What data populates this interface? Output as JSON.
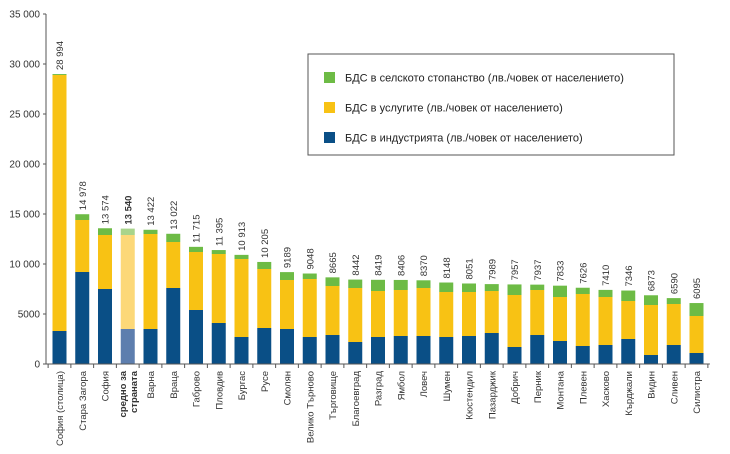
{
  "chart_data": {
    "type": "bar",
    "stacked": true,
    "ylim": [
      0,
      35000
    ],
    "yticks": [
      0,
      5000,
      10000,
      15000,
      20000,
      25000,
      30000,
      35000
    ],
    "ytick_labels": [
      "0",
      "5000",
      "10 000",
      "15 000",
      "20 000",
      "25 000",
      "30 000",
      "35 000"
    ],
    "grid": false,
    "legend_position": "top-right",
    "categories": [
      "София (столица)",
      "Стара Загора",
      "София",
      "средно за страната",
      "Варна",
      "Враца",
      "Габрово",
      "Пловдив",
      "Бургас",
      "Русе",
      "Смолян",
      "Велико Търново",
      "Търговище",
      "Благоевград",
      "Разград",
      "Ямбол",
      "Ловеч",
      "Шумен",
      "Кюстендил",
      "Пазарджик",
      "Добрич",
      "Перник",
      "Монтана",
      "Плевен",
      "Хасково",
      "Кърджали",
      "Видин",
      "Сливен",
      "Силистра"
    ],
    "category_lines": [
      [
        "София (столица)"
      ],
      [
        "Стара Загора"
      ],
      [
        "София"
      ],
      [
        "средно за",
        "страната"
      ],
      [
        "Варна"
      ],
      [
        "Враца"
      ],
      [
        "Габрово"
      ],
      [
        "Пловдив"
      ],
      [
        "Бургас"
      ],
      [
        "Русе"
      ],
      [
        "Смолян"
      ],
      [
        "Велико Търново"
      ],
      [
        "Търговище"
      ],
      [
        "Благоевград"
      ],
      [
        "Разград"
      ],
      [
        "Ямбол"
      ],
      [
        "Ловеч"
      ],
      [
        "Шумен"
      ],
      [
        "Кюстендил"
      ],
      [
        "Пазарджик"
      ],
      [
        "Добрич"
      ],
      [
        "Перник"
      ],
      [
        "Монтана"
      ],
      [
        "Плевен"
      ],
      [
        "Хасково"
      ],
      [
        "Кърджали"
      ],
      [
        "Видин"
      ],
      [
        "Сливен"
      ],
      [
        "Силистра"
      ]
    ],
    "highlight_index": 3,
    "totals": [
      28994,
      14978,
      13574,
      13540,
      13422,
      13022,
      11715,
      11395,
      10913,
      10205,
      9189,
      9048,
      8665,
      8442,
      8419,
      8406,
      8370,
      8148,
      8051,
      7989,
      7957,
      7937,
      7833,
      7626,
      7410,
      7346,
      6873,
      6590,
      6095
    ],
    "total_labels": [
      "28 994",
      "14 978",
      "13 574",
      "13 540",
      "13 422",
      "13 022",
      "11 715",
      "11 395",
      "10 913",
      "10 205",
      "9189",
      "9048",
      "8665",
      "8442",
      "8419",
      "8406",
      "8370",
      "8148",
      "8051",
      "7989",
      "7957",
      "7937",
      "7833",
      "7626",
      "7410",
      "7346",
      "6873",
      "6590",
      "6095"
    ],
    "series": [
      {
        "name": "БДС в индустрията (лв./човек от населението)",
        "color": "#0a4f86",
        "highlight_color": "#5d7eae",
        "values": [
          3300,
          9200,
          7500,
          3500,
          3500,
          7600,
          5400,
          4100,
          2700,
          3600,
          3500,
          2700,
          2900,
          2200,
          2700,
          2800,
          2800,
          2700,
          2800,
          3100,
          1700,
          2900,
          2300,
          1800,
          1900,
          2500,
          900,
          1900,
          1100
        ]
      },
      {
        "name": "БДС в услугите (лв./човек от населението)",
        "color": "#f8c214",
        "highlight_color": "#fcd878",
        "values": [
          25600,
          5200,
          5400,
          9400,
          9500,
          4600,
          5800,
          6900,
          7800,
          5900,
          4900,
          5800,
          4900,
          5400,
          4600,
          4600,
          4800,
          4500,
          4400,
          4200,
          5200,
          4500,
          4400,
          5200,
          4800,
          3800,
          5000,
          4100,
          3700
        ]
      },
      {
        "name": "БДС в селското стопанство (лв./човек от населението)",
        "color": "#6dbb45",
        "highlight_color": "#a8d48b",
        "values": [
          94,
          578,
          674,
          640,
          422,
          822,
          515,
          395,
          413,
          705,
          789,
          548,
          865,
          842,
          1119,
          1006,
          770,
          948,
          851,
          689,
          1057,
          537,
          1133,
          626,
          710,
          1046,
          973,
          590,
          1295
        ]
      }
    ],
    "legend_order": [
      2,
      1,
      0
    ]
  }
}
